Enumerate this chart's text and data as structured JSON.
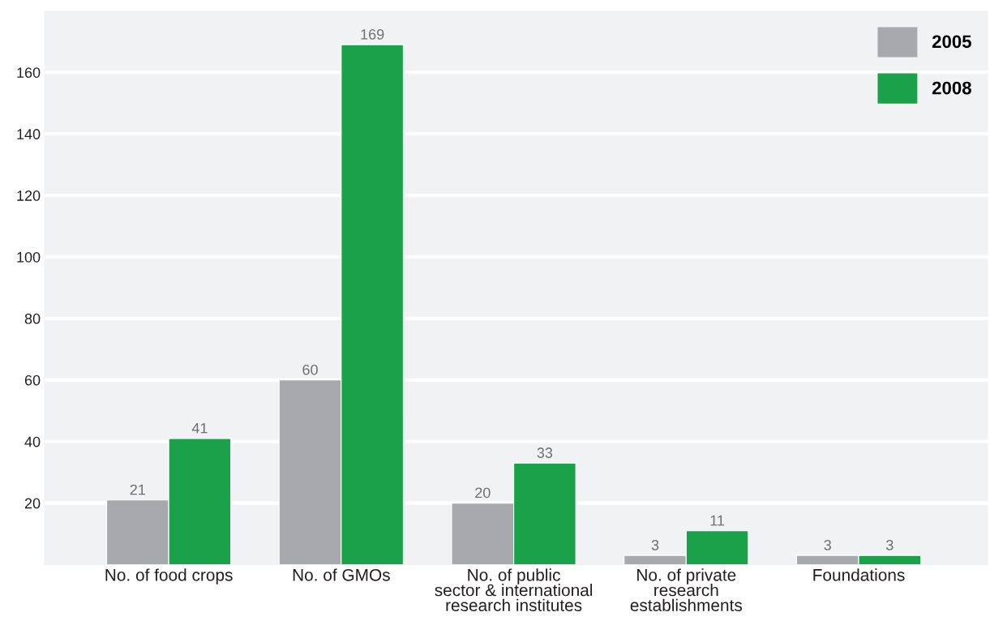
{
  "chart_data": {
    "type": "bar",
    "categories": [
      "No. of food crops",
      "No. of GMOs",
      "No. of public\nsector & international\nresearch institutes",
      "No. of private\nresearch\nestablishments",
      "Foundations"
    ],
    "series": [
      {
        "name": "2005",
        "color": "#a7a9ac",
        "values": [
          21,
          60,
          20,
          3,
          3
        ]
      },
      {
        "name": "2008",
        "color": "#1ba14a",
        "values": [
          41,
          169,
          33,
          11,
          3
        ]
      }
    ],
    "ylim": [
      0,
      180
    ],
    "yticks": [
      20,
      40,
      60,
      80,
      100,
      120,
      140,
      160
    ],
    "grid": "y",
    "legend": "top right",
    "data_labels": true
  }
}
